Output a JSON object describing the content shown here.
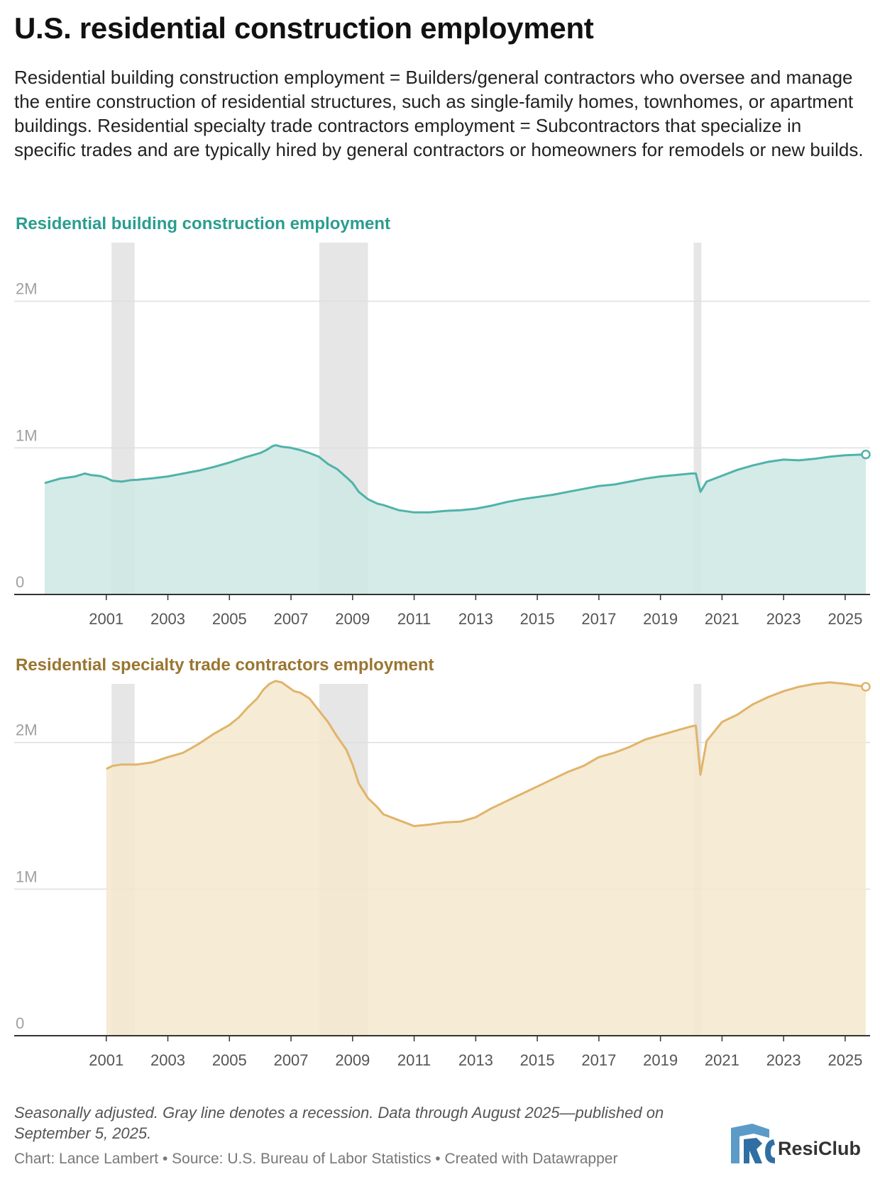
{
  "header": {
    "title": "U.S. residential construction employment",
    "subtitle": "Residential building construction employment = Builders/general contractors who oversee and manage the entire construction of residential structures, such as single-family homes, townhomes, or apartment buildings. Residential specialty trade contractors employment = Subcontractors that specialize in specific trades and are typically hired by general contractors or homeowners for remodels or new builds."
  },
  "chart_data": [
    {
      "type": "area",
      "title": "Residential building construction employment",
      "color": "#4fb3a9",
      "fill": "#cde8e4",
      "title_color": "#2a9d8f",
      "ylim": [
        0,
        2400000
      ],
      "y_ticks": [
        {
          "value": 0,
          "label": "0"
        },
        {
          "value": 1000000,
          "label": "1M"
        },
        {
          "value": 2000000,
          "label": "2M"
        }
      ],
      "x_range": [
        1999,
        2025.67
      ],
      "x_ticks": [
        2001,
        2003,
        2005,
        2007,
        2009,
        2011,
        2013,
        2015,
        2017,
        2019,
        2021,
        2023,
        2025
      ],
      "recessions": [
        [
          2001.17,
          2001.92
        ],
        [
          2007.92,
          2009.5
        ],
        [
          2020.08,
          2020.33
        ]
      ],
      "points": [
        [
          1999.0,
          760000
        ],
        [
          1999.5,
          790000
        ],
        [
          2000.0,
          805000
        ],
        [
          2000.3,
          825000
        ],
        [
          2000.5,
          815000
        ],
        [
          2000.8,
          808000
        ],
        [
          2001.0,
          795000
        ],
        [
          2001.2,
          775000
        ],
        [
          2001.5,
          770000
        ],
        [
          2001.8,
          780000
        ],
        [
          2002.0,
          782000
        ],
        [
          2002.5,
          792000
        ],
        [
          2003.0,
          805000
        ],
        [
          2003.5,
          825000
        ],
        [
          2004.0,
          845000
        ],
        [
          2004.5,
          870000
        ],
        [
          2005.0,
          900000
        ],
        [
          2005.5,
          935000
        ],
        [
          2006.0,
          965000
        ],
        [
          2006.2,
          985000
        ],
        [
          2006.4,
          1012000
        ],
        [
          2006.5,
          1018000
        ],
        [
          2006.7,
          1008000
        ],
        [
          2007.0,
          1000000
        ],
        [
          2007.3,
          985000
        ],
        [
          2007.6,
          965000
        ],
        [
          2007.9,
          940000
        ],
        [
          2008.2,
          890000
        ],
        [
          2008.5,
          855000
        ],
        [
          2008.8,
          800000
        ],
        [
          2009.0,
          760000
        ],
        [
          2009.2,
          700000
        ],
        [
          2009.5,
          650000
        ],
        [
          2009.8,
          620000
        ],
        [
          2010.0,
          610000
        ],
        [
          2010.5,
          575000
        ],
        [
          2011.0,
          560000
        ],
        [
          2011.5,
          560000
        ],
        [
          2012.0,
          570000
        ],
        [
          2012.5,
          575000
        ],
        [
          2013.0,
          585000
        ],
        [
          2013.5,
          605000
        ],
        [
          2014.0,
          630000
        ],
        [
          2014.5,
          650000
        ],
        [
          2015.0,
          665000
        ],
        [
          2015.5,
          680000
        ],
        [
          2016.0,
          700000
        ],
        [
          2016.5,
          720000
        ],
        [
          2017.0,
          740000
        ],
        [
          2017.5,
          750000
        ],
        [
          2018.0,
          770000
        ],
        [
          2018.5,
          790000
        ],
        [
          2019.0,
          805000
        ],
        [
          2019.5,
          815000
        ],
        [
          2020.0,
          825000
        ],
        [
          2020.15,
          825000
        ],
        [
          2020.3,
          700000
        ],
        [
          2020.5,
          770000
        ],
        [
          2021.0,
          810000
        ],
        [
          2021.5,
          850000
        ],
        [
          2022.0,
          880000
        ],
        [
          2022.5,
          905000
        ],
        [
          2023.0,
          920000
        ],
        [
          2023.5,
          915000
        ],
        [
          2024.0,
          925000
        ],
        [
          2024.5,
          940000
        ],
        [
          2025.0,
          950000
        ],
        [
          2025.67,
          955000
        ]
      ]
    },
    {
      "type": "area",
      "title": "Residential specialty trade contractors employment",
      "color": "#e0b46a",
      "fill": "#f4e7cd",
      "title_color": "#9a7530",
      "ylim": [
        0,
        2400000
      ],
      "y_ticks": [
        {
          "value": 0,
          "label": "0"
        },
        {
          "value": 1000000,
          "label": "1M"
        },
        {
          "value": 2000000,
          "label": "2M"
        }
      ],
      "x_range": [
        1999,
        2025.67
      ],
      "x_ticks": [
        2001,
        2003,
        2005,
        2007,
        2009,
        2011,
        2013,
        2015,
        2017,
        2019,
        2021,
        2023,
        2025
      ],
      "recessions": [
        [
          2001.17,
          2001.92
        ],
        [
          2007.92,
          2009.5
        ],
        [
          2020.08,
          2020.33
        ]
      ],
      "points": [
        [
          2001.0,
          1820000
        ],
        [
          2001.2,
          1840000
        ],
        [
          2001.5,
          1850000
        ],
        [
          2002.0,
          1850000
        ],
        [
          2002.5,
          1865000
        ],
        [
          2003.0,
          1900000
        ],
        [
          2003.5,
          1930000
        ],
        [
          2004.0,
          1990000
        ],
        [
          2004.5,
          2060000
        ],
        [
          2005.0,
          2120000
        ],
        [
          2005.3,
          2170000
        ],
        [
          2005.6,
          2240000
        ],
        [
          2005.9,
          2300000
        ],
        [
          2006.1,
          2360000
        ],
        [
          2006.3,
          2400000
        ],
        [
          2006.5,
          2420000
        ],
        [
          2006.7,
          2410000
        ],
        [
          2006.9,
          2380000
        ],
        [
          2007.1,
          2350000
        ],
        [
          2007.3,
          2340000
        ],
        [
          2007.6,
          2300000
        ],
        [
          2007.9,
          2220000
        ],
        [
          2008.2,
          2140000
        ],
        [
          2008.5,
          2040000
        ],
        [
          2008.8,
          1950000
        ],
        [
          2009.0,
          1850000
        ],
        [
          2009.2,
          1720000
        ],
        [
          2009.5,
          1620000
        ],
        [
          2009.8,
          1560000
        ],
        [
          2010.0,
          1510000
        ],
        [
          2010.5,
          1470000
        ],
        [
          2011.0,
          1430000
        ],
        [
          2011.5,
          1440000
        ],
        [
          2012.0,
          1455000
        ],
        [
          2012.5,
          1460000
        ],
        [
          2013.0,
          1490000
        ],
        [
          2013.5,
          1550000
        ],
        [
          2014.0,
          1600000
        ],
        [
          2014.5,
          1650000
        ],
        [
          2015.0,
          1700000
        ],
        [
          2015.5,
          1750000
        ],
        [
          2016.0,
          1800000
        ],
        [
          2016.5,
          1840000
        ],
        [
          2017.0,
          1900000
        ],
        [
          2017.5,
          1930000
        ],
        [
          2018.0,
          1970000
        ],
        [
          2018.5,
          2020000
        ],
        [
          2019.0,
          2050000
        ],
        [
          2019.5,
          2080000
        ],
        [
          2020.0,
          2110000
        ],
        [
          2020.15,
          2115000
        ],
        [
          2020.3,
          1780000
        ],
        [
          2020.5,
          2010000
        ],
        [
          2021.0,
          2140000
        ],
        [
          2021.5,
          2190000
        ],
        [
          2022.0,
          2260000
        ],
        [
          2022.5,
          2310000
        ],
        [
          2023.0,
          2350000
        ],
        [
          2023.5,
          2380000
        ],
        [
          2024.0,
          2400000
        ],
        [
          2024.5,
          2410000
        ],
        [
          2025.0,
          2400000
        ],
        [
          2025.67,
          2380000
        ]
      ]
    }
  ],
  "footer": {
    "notes": "Seasonally adjusted. Gray line denotes a recession. Data through August 2025—published on September 5, 2025.",
    "credits": "Chart: Lance Lambert • Source: U.S. Bureau of Labor Statistics • Created with Datawrapper",
    "logo_text": "ResiClub"
  }
}
